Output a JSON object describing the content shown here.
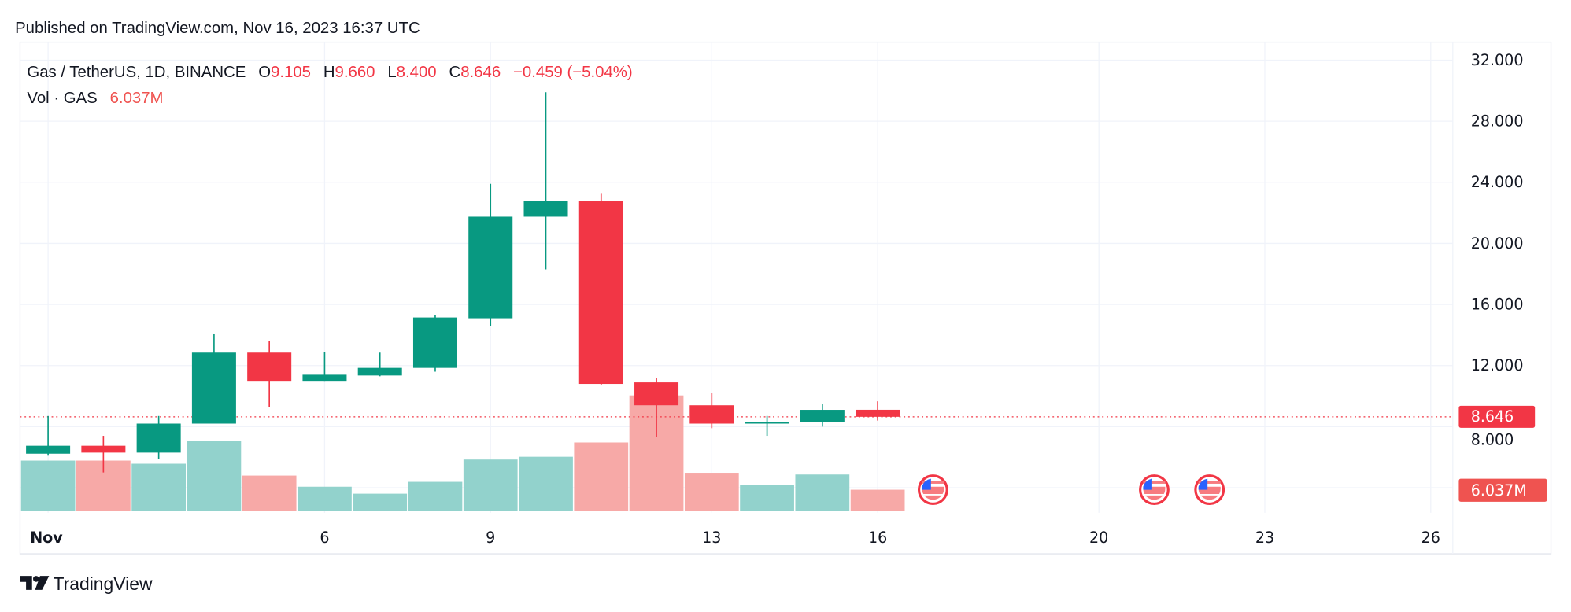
{
  "published": "Published on TradingView.com, Nov 16, 2023 16:37 UTC",
  "legend": {
    "symbol": "Gas / TetherUS, 1D, BINANCE",
    "o_label": "O",
    "o": "9.105",
    "h_label": "H",
    "h": "9.660",
    "l_label": "L",
    "l": "8.400",
    "c_label": "C",
    "c": "8.646",
    "change": "−0.459 (−5.04%)",
    "vol_label": "Vol · GAS",
    "vol": "6.037M"
  },
  "logo": "TradingView",
  "colors": {
    "up": "#089981",
    "down": "#F23645",
    "vol_up": "#92D2CC",
    "vol_down": "#F7A9A7",
    "text": "#131722"
  },
  "chart_data": {
    "type": "candlestick",
    "y_ticks": [
      "32.000",
      "28.000",
      "24.000",
      "20.000",
      "16.000",
      "12.000",
      "8.000"
    ],
    "ylim": [
      4,
      32
    ],
    "x_ticks": [
      {
        "day": 1,
        "label": "Nov"
      },
      {
        "day": 6,
        "label": "6"
      },
      {
        "day": 9,
        "label": "9"
      },
      {
        "day": 13,
        "label": "13"
      },
      {
        "day": 16,
        "label": "16"
      },
      {
        "day": 20,
        "label": "20"
      },
      {
        "day": 23,
        "label": "23"
      },
      {
        "day": 26,
        "label": "26"
      }
    ],
    "last_price_label": "8.646",
    "last_volume_label": "6.037M",
    "candles": [
      {
        "day": 1,
        "o": 6.23,
        "h": 8.7,
        "l": 6.1,
        "c": 6.75,
        "v": 14.4
      },
      {
        "day": 2,
        "o": 6.75,
        "h": 7.4,
        "l": 5.0,
        "c": 6.3,
        "v": 14.4
      },
      {
        "day": 3,
        "o": 6.3,
        "h": 8.7,
        "l": 5.9,
        "c": 8.2,
        "v": 13.5
      },
      {
        "day": 4,
        "o": 8.2,
        "h": 14.1,
        "l": 8.2,
        "c": 12.85,
        "v": 20.1
      },
      {
        "day": 5,
        "o": 12.85,
        "h": 13.6,
        "l": 9.3,
        "c": 11.0,
        "v": 10.1
      },
      {
        "day": 6,
        "o": 11.0,
        "h": 12.9,
        "l": 11.0,
        "c": 11.4,
        "v": 6.9
      },
      {
        "day": 7,
        "o": 11.35,
        "h": 12.85,
        "l": 11.3,
        "c": 11.85,
        "v": 4.9
      },
      {
        "day": 8,
        "o": 11.85,
        "h": 15.3,
        "l": 11.6,
        "c": 15.15,
        "v": 8.3
      },
      {
        "day": 9,
        "o": 15.1,
        "h": 23.9,
        "l": 14.6,
        "c": 21.75,
        "v": 14.7
      },
      {
        "day": 10,
        "o": 21.75,
        "h": 29.9,
        "l": 18.3,
        "c": 22.8,
        "v": 15.5
      },
      {
        "day": 11,
        "o": 22.8,
        "h": 23.3,
        "l": 10.7,
        "c": 10.8,
        "v": 19.6
      },
      {
        "day": 12,
        "o": 10.9,
        "h": 11.2,
        "l": 7.3,
        "c": 9.4,
        "v": 33.1
      },
      {
        "day": 13,
        "o": 9.4,
        "h": 10.2,
        "l": 7.9,
        "c": 8.2,
        "v": 10.9
      },
      {
        "day": 14,
        "o": 8.2,
        "h": 8.7,
        "l": 7.4,
        "c": 8.3,
        "v": 7.5
      },
      {
        "day": 15,
        "o": 8.3,
        "h": 9.5,
        "l": 8.0,
        "c": 9.1,
        "v": 10.4
      },
      {
        "day": 16,
        "o": 9.105,
        "h": 9.66,
        "l": 8.4,
        "c": 8.646,
        "v": 6.037
      }
    ],
    "event_days": [
      17,
      21,
      22
    ],
    "event_icon": "us-flag-icon"
  }
}
